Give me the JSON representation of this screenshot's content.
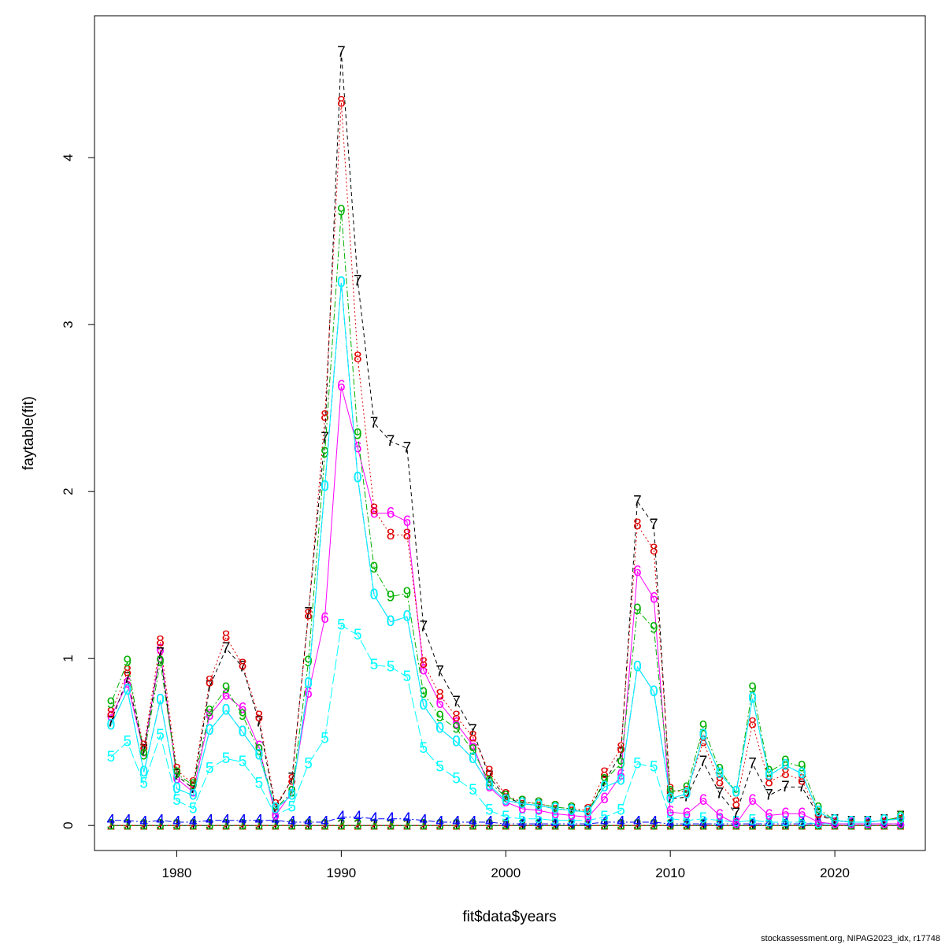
{
  "chart_data": {
    "type": "line",
    "xlabel": "fit$data$years",
    "ylabel": "faytable(fit)",
    "xlim": [
      1975,
      2025.5
    ],
    "ylim": [
      -0.15,
      4.85
    ],
    "xticks": [
      1980,
      1990,
      2000,
      2010,
      2020
    ],
    "yticks": [
      0,
      1,
      2,
      3,
      4
    ],
    "grid": false,
    "x": [
      1976,
      1977,
      1978,
      1979,
      1980,
      1981,
      1982,
      1983,
      1984,
      1985,
      1986,
      1987,
      1988,
      1989,
      1990,
      1991,
      1992,
      1993,
      1994,
      1995,
      1996,
      1997,
      1998,
      1999,
      2000,
      2001,
      2002,
      2003,
      2004,
      2005,
      2006,
      2007,
      2008,
      2009,
      2010,
      2011,
      2012,
      2013,
      2014,
      2015,
      2016,
      2017,
      2018,
      2019,
      2020,
      2021,
      2022,
      2023,
      2024
    ],
    "series": [
      {
        "label": "1",
        "color": "#000000",
        "dash": "",
        "values": [
          0,
          0,
          0,
          0,
          0,
          0,
          0,
          0,
          0,
          0,
          0,
          0,
          0,
          0,
          0,
          0,
          0,
          0,
          0,
          0,
          0,
          0,
          0,
          0,
          0,
          0,
          0,
          0,
          0,
          0,
          0,
          0,
          0,
          0,
          0,
          0,
          0,
          0,
          0,
          0,
          0,
          0,
          0,
          0,
          0,
          0,
          0,
          0,
          0
        ]
      },
      {
        "label": "2",
        "color": "#df0000",
        "dash": "8 4",
        "values": [
          0,
          0,
          0,
          0,
          0,
          0,
          0,
          0,
          0,
          0,
          0,
          0,
          0,
          0,
          0,
          0,
          0,
          0,
          0,
          0,
          0,
          0,
          0,
          0,
          0,
          0,
          0,
          0,
          0,
          0,
          0,
          0,
          0,
          0,
          0,
          0,
          0,
          0,
          0,
          0,
          0,
          0,
          0,
          0,
          0,
          0,
          0,
          0,
          0
        ]
      },
      {
        "label": "3",
        "color": "#00b000",
        "dash": "2 3",
        "values": [
          0,
          0,
          0,
          0,
          0,
          0,
          0,
          0,
          0,
          0,
          0,
          0,
          0,
          0,
          0,
          0,
          0,
          0,
          0,
          0,
          0,
          0,
          0,
          0,
          0,
          0,
          0,
          0,
          0,
          0,
          0,
          0,
          0,
          0,
          0,
          0,
          0,
          0,
          0,
          0,
          0,
          0,
          0,
          0,
          0,
          0,
          0,
          0,
          0
        ]
      },
      {
        "label": "4",
        "color": "#0000ff",
        "dash": "2 3 8 3",
        "values": [
          0.03,
          0.03,
          0.02,
          0.03,
          0.02,
          0.02,
          0.03,
          0.03,
          0.03,
          0.03,
          0.03,
          0.02,
          0.02,
          0.02,
          0.05,
          0.05,
          0.04,
          0.04,
          0.04,
          0.03,
          0.02,
          0.02,
          0.02,
          0.02,
          0.01,
          0.01,
          0.01,
          0.01,
          0.01,
          0.01,
          0.02,
          0.02,
          0.02,
          0.02,
          0.01,
          0.01,
          0.01,
          0.01,
          0.01,
          0.01,
          0.01,
          0.01,
          0.01,
          0.01,
          0.01,
          0.01,
          0.01,
          0.01,
          0.01
        ]
      },
      {
        "label": "5",
        "color": "#00ffff",
        "dash": "14 4",
        "values": [
          0.41,
          0.5,
          0.25,
          0.54,
          0.15,
          0.1,
          0.34,
          0.4,
          0.38,
          0.25,
          0.06,
          0.11,
          0.37,
          0.52,
          1.2,
          1.14,
          0.96,
          0.95,
          0.89,
          0.46,
          0.35,
          0.28,
          0.21,
          0.09,
          0.05,
          0.04,
          0.04,
          0.03,
          0.03,
          0.03,
          0.05,
          0.09,
          0.37,
          0.35,
          0.04,
          0.03,
          0.04,
          0.03,
          0.02,
          0.03,
          0.02,
          0.02,
          0.02,
          0.01,
          0.01,
          0.01,
          0.01,
          0.01,
          0.01
        ]
      },
      {
        "label": "6",
        "color": "#ff00ff",
        "dash": "",
        "values": [
          0.65,
          0.85,
          0.44,
          1.05,
          0.28,
          0.2,
          0.66,
          0.78,
          0.7,
          0.47,
          0.06,
          0.2,
          0.79,
          1.24,
          2.63,
          2.26,
          1.87,
          1.87,
          1.82,
          0.93,
          0.73,
          0.61,
          0.48,
          0.23,
          0.14,
          0.1,
          0.09,
          0.07,
          0.06,
          0.05,
          0.16,
          0.3,
          1.52,
          1.36,
          0.08,
          0.07,
          0.15,
          0.06,
          0.01,
          0.15,
          0.06,
          0.07,
          0.07,
          0.02,
          0.01,
          0.01,
          0.01,
          0.01,
          0.01
        ]
      },
      {
        "label": "7",
        "color": "#000000",
        "dash": "5 4",
        "values": [
          0.62,
          0.88,
          0.45,
          1.03,
          0.3,
          0.22,
          0.83,
          1.06,
          0.95,
          0.62,
          0.1,
          0.28,
          1.27,
          2.32,
          4.63,
          3.26,
          2.41,
          2.3,
          2.26,
          1.19,
          0.92,
          0.74,
          0.57,
          0.29,
          0.17,
          0.13,
          0.12,
          0.1,
          0.09,
          0.08,
          0.26,
          0.43,
          1.94,
          1.8,
          0.16,
          0.17,
          0.38,
          0.19,
          0.07,
          0.37,
          0.18,
          0.23,
          0.23,
          0.06,
          0.03,
          0.02,
          0.02,
          0.03,
          0.05
        ]
      },
      {
        "label": "8",
        "color": "#df0000",
        "dash": "2 3",
        "values": [
          0.67,
          0.92,
          0.47,
          1.1,
          0.33,
          0.25,
          0.86,
          1.13,
          0.96,
          0.65,
          0.12,
          0.27,
          1.26,
          2.45,
          4.33,
          2.8,
          1.89,
          1.74,
          1.74,
          0.97,
          0.78,
          0.65,
          0.53,
          0.32,
          0.18,
          0.14,
          0.13,
          0.11,
          0.1,
          0.09,
          0.31,
          0.46,
          1.8,
          1.65,
          0.21,
          0.2,
          0.5,
          0.26,
          0.13,
          0.61,
          0.26,
          0.31,
          0.27,
          0.07,
          0.03,
          0.02,
          0.02,
          0.03,
          0.05
        ]
      },
      {
        "label": "9",
        "color": "#00b000",
        "dash": "2 3 8 3",
        "values": [
          0.73,
          0.98,
          0.42,
          0.98,
          0.31,
          0.24,
          0.68,
          0.82,
          0.66,
          0.45,
          0.1,
          0.2,
          0.98,
          2.23,
          3.68,
          2.34,
          1.54,
          1.37,
          1.39,
          0.79,
          0.65,
          0.58,
          0.45,
          0.26,
          0.17,
          0.14,
          0.13,
          0.11,
          0.1,
          0.08,
          0.27,
          0.37,
          1.29,
          1.18,
          0.2,
          0.22,
          0.59,
          0.33,
          0.2,
          0.82,
          0.32,
          0.38,
          0.35,
          0.1,
          0.03,
          0.02,
          0.02,
          0.03,
          0.05
        ]
      },
      {
        "label": "0",
        "color": "#0000ff",
        "dash": "14 4",
        "values": [
          0.6,
          0.81,
          0.32,
          0.75,
          0.22,
          0.18,
          0.57,
          0.69,
          0.56,
          0.42,
          0.1,
          0.18,
          0.85,
          2.03,
          3.25,
          2.08,
          1.38,
          1.22,
          1.25,
          0.72,
          0.58,
          0.5,
          0.4,
          0.24,
          0.15,
          0.13,
          0.12,
          0.1,
          0.09,
          0.08,
          0.23,
          0.27,
          0.95,
          0.8,
          0.16,
          0.19,
          0.54,
          0.31,
          0.2,
          0.76,
          0.3,
          0.36,
          0.31,
          0.08,
          0.03,
          0.02,
          0.02,
          0.03,
          0.04
        ]
      },
      {
        "label": "0",
        "color": "#00ffff",
        "dash": "",
        "values": [
          0.6,
          0.81,
          0.32,
          0.75,
          0.22,
          0.18,
          0.57,
          0.69,
          0.56,
          0.42,
          0.1,
          0.18,
          0.85,
          2.03,
          3.25,
          2.08,
          1.38,
          1.22,
          1.25,
          0.72,
          0.58,
          0.5,
          0.4,
          0.24,
          0.15,
          0.13,
          0.12,
          0.1,
          0.09,
          0.08,
          0.23,
          0.27,
          0.95,
          0.8,
          0.16,
          0.19,
          0.54,
          0.31,
          0.2,
          0.76,
          0.3,
          0.36,
          0.31,
          0.08,
          0.03,
          0.02,
          0.02,
          0.03,
          0.04
        ]
      }
    ]
  },
  "footer": "stockassessment.org, NIPAG2023_idx, r17748"
}
